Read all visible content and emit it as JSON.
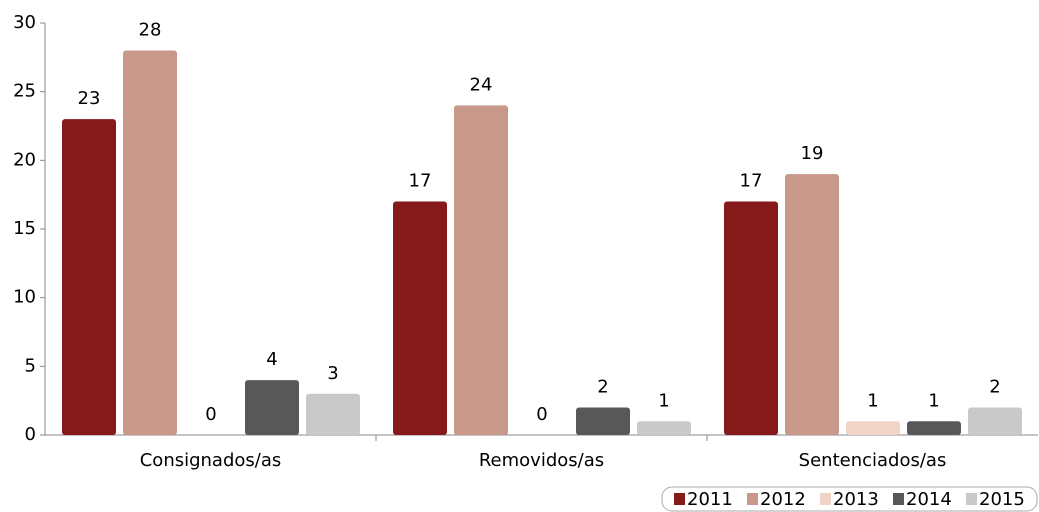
{
  "chart_data": {
    "type": "bar",
    "categories": [
      "Consignados/as",
      "Removidos/as",
      "Sentenciados/as"
    ],
    "series": [
      {
        "name": "2011",
        "color": "#861a1a",
        "values": [
          23,
          17,
          17
        ]
      },
      {
        "name": "2012",
        "color": "#c8988a",
        "values": [
          28,
          24,
          19
        ]
      },
      {
        "name": "2013",
        "color": "#f1d3c8",
        "values": [
          0,
          0,
          1
        ]
      },
      {
        "name": "2014",
        "color": "#585858",
        "values": [
          4,
          2,
          1
        ]
      },
      {
        "name": "2015",
        "color": "#c9c9c9",
        "values": [
          3,
          1,
          2
        ]
      }
    ],
    "ylim": [
      0,
      30
    ],
    "yticks": [
      0,
      5,
      10,
      15,
      20,
      25,
      30
    ],
    "legend": "bottom-right"
  }
}
